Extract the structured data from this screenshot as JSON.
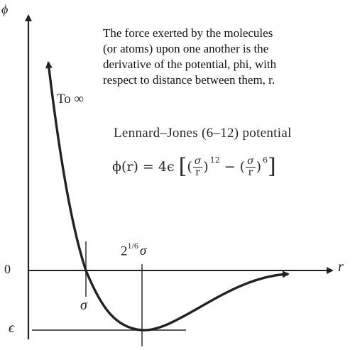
{
  "note": "The force exerted by the molecules\n(or atoms) upon one another is the\nderivative of the potential, phi, with\nrespect to distance between them, r.",
  "labels": {
    "phi_axis": "ϕ",
    "r_axis": "r",
    "zero": "0",
    "epsilon": "ϵ",
    "sigma": "σ",
    "min_base": "2",
    "min_exp": "1/6",
    "min_sigma": "σ",
    "to_infinity": "To ∞"
  },
  "title": "Lennard–Jones (6–12) potential",
  "formula": {
    "lhs": "ϕ(r) = 4ϵ",
    "bracket_open": "[",
    "bracket_close": "]",
    "paren_open": "(",
    "paren_close": ")",
    "minus": "−",
    "frac_num": "σ",
    "frac_den": "r",
    "exp1": "12",
    "exp2": "6"
  },
  "colors": {
    "ink": "#222222",
    "background": "#ffffff"
  }
}
